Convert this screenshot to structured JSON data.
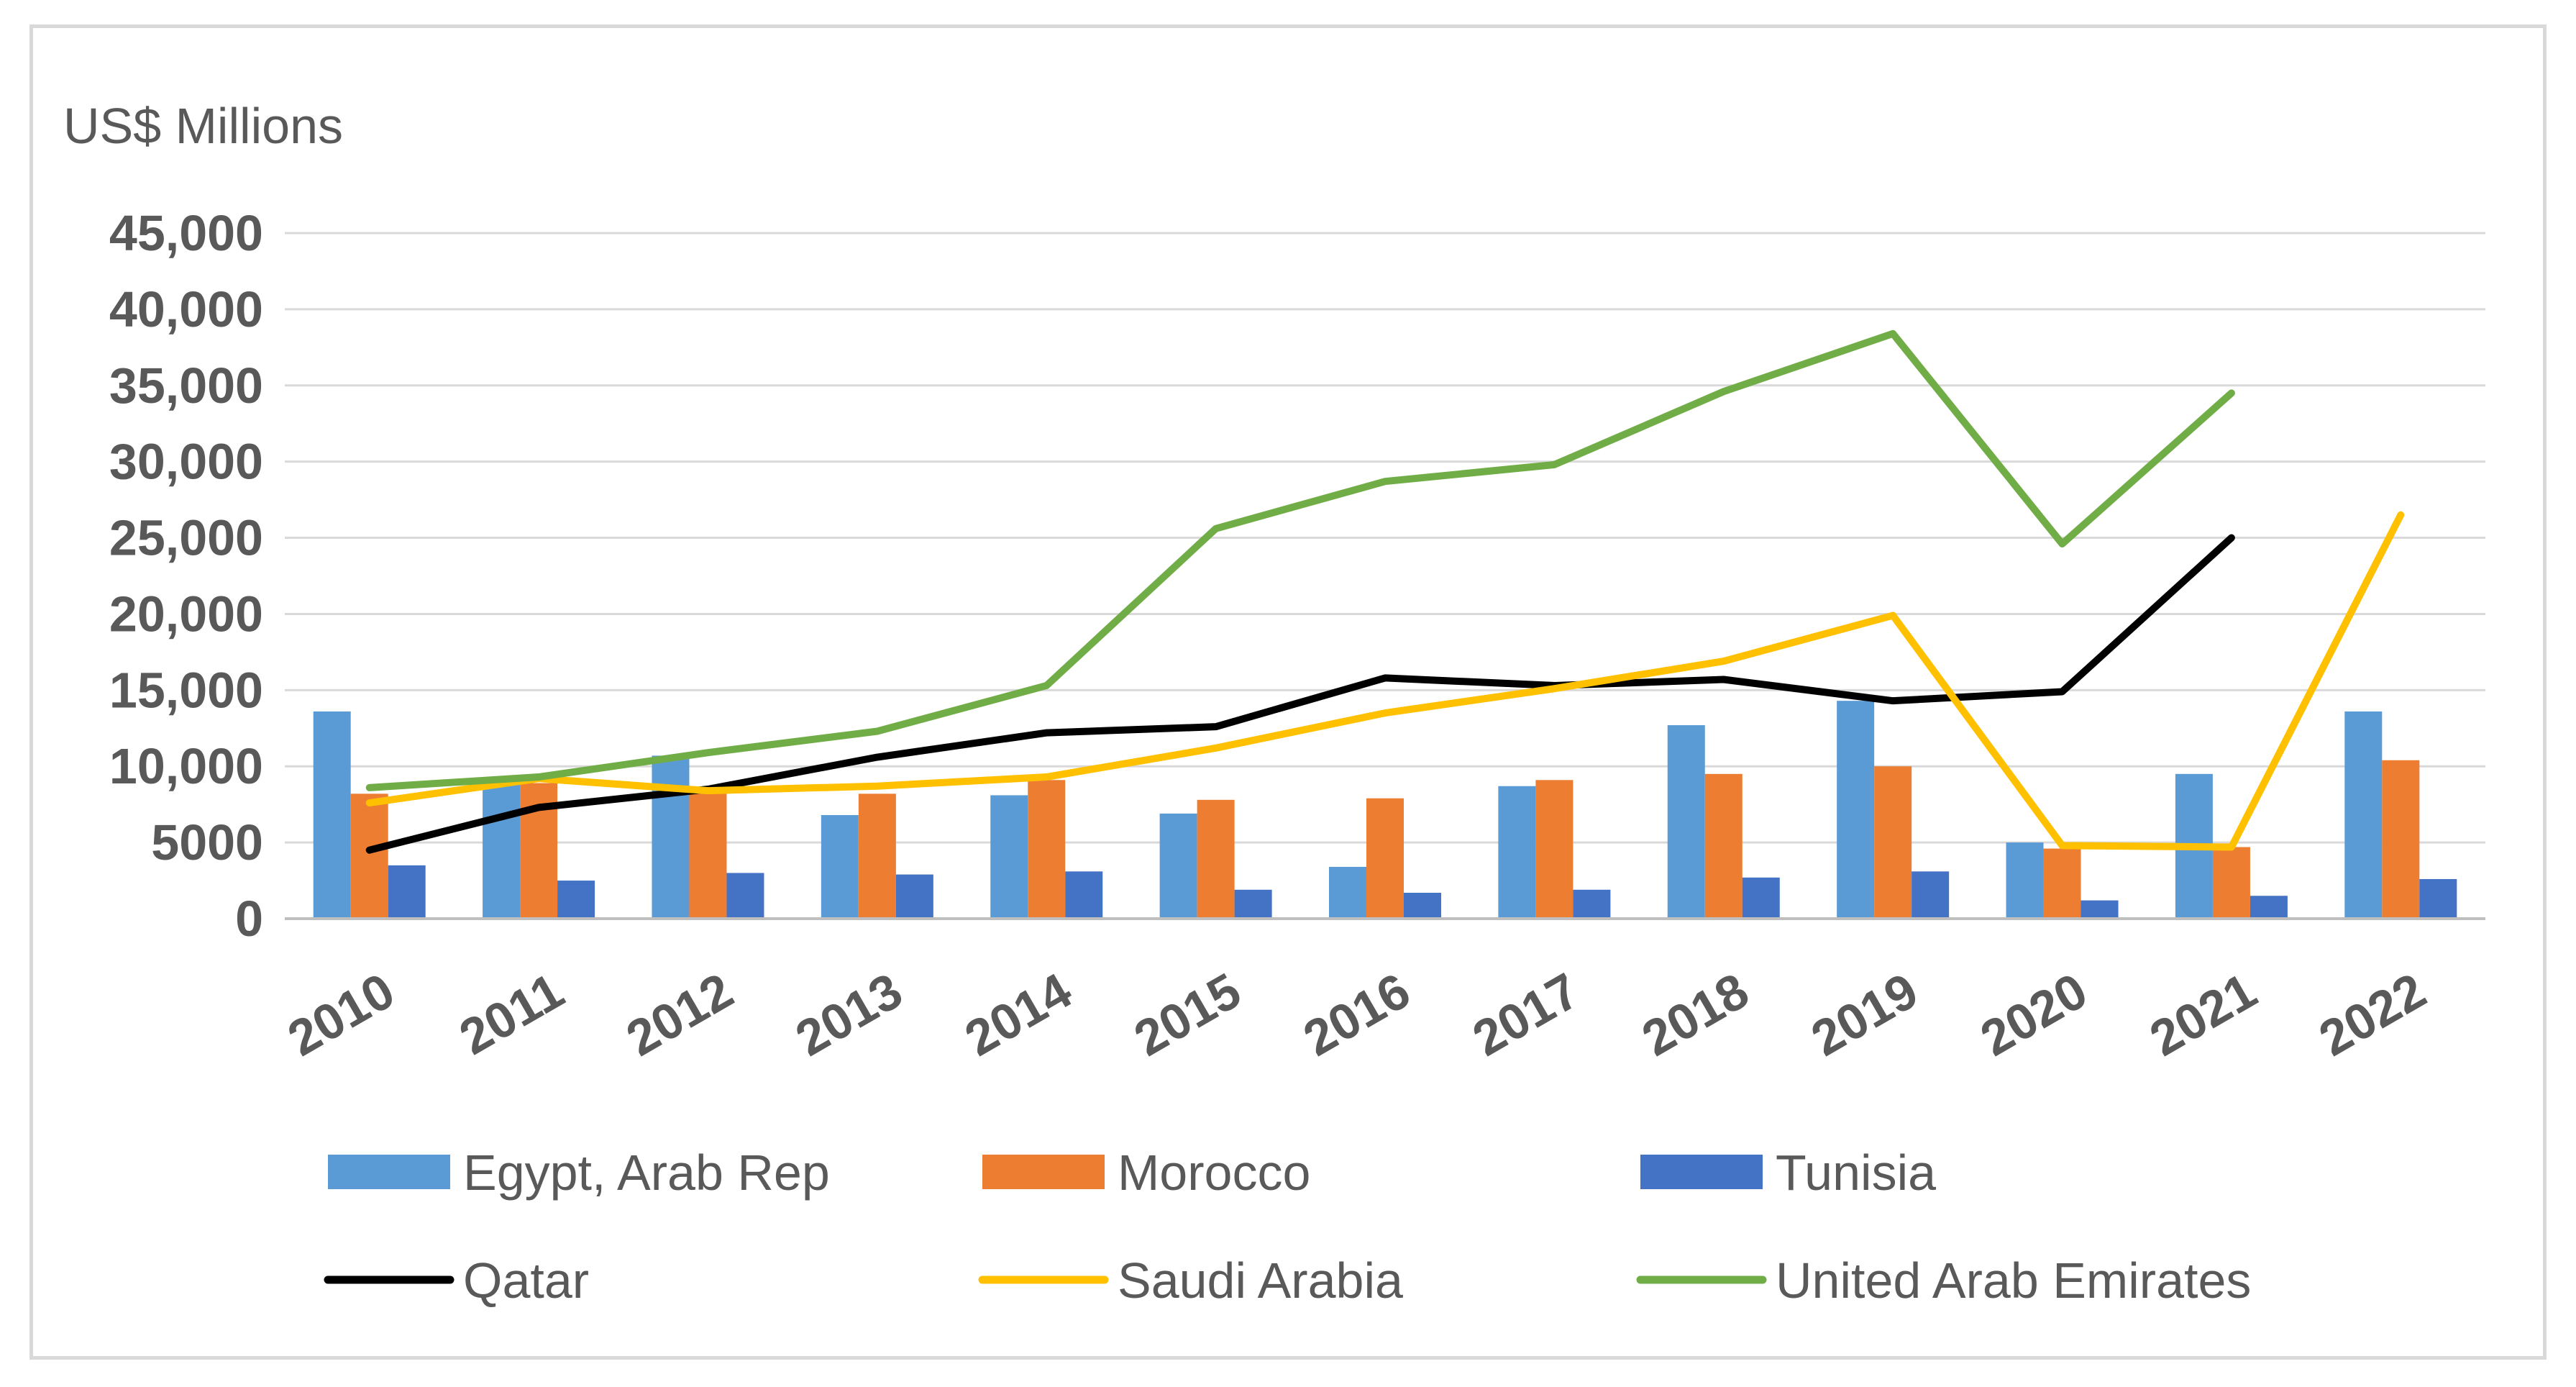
{
  "chart_data": {
    "type": "bar",
    "unit_label": "US$ Millions",
    "title": "",
    "xlabel": "",
    "ylabel": "US$ Millions",
    "ylim": [
      0,
      45000
    ],
    "y_ticks": [
      0,
      5000,
      10000,
      15000,
      20000,
      25000,
      30000,
      35000,
      40000,
      45000
    ],
    "y_tick_labels": [
      "0",
      "5000",
      "10,000",
      "15,000",
      "20,000",
      "25,000",
      "30,000",
      "35,000",
      "40,000",
      "45,000"
    ],
    "grid": true,
    "categories": [
      "2010",
      "2011",
      "2012",
      "2013",
      "2014",
      "2015",
      "2016",
      "2017",
      "2018",
      "2019",
      "2020",
      "2021",
      "2022"
    ],
    "bar_series": [
      {
        "name": "Egypt, Arab Rep",
        "color": "#5b9bd5",
        "values": [
          13600,
          9000,
          10700,
          6800,
          8100,
          6900,
          3400,
          8700,
          12700,
          14300,
          5000,
          9500,
          13600
        ]
      },
      {
        "name": "Morocco",
        "color": "#ed7d31",
        "values": [
          8200,
          8900,
          8400,
          8200,
          9100,
          7800,
          7900,
          9100,
          9500,
          10000,
          4600,
          4700,
          10400
        ]
      },
      {
        "name": "Tunisia",
        "color": "#4472c4",
        "values": [
          3500,
          2500,
          3000,
          2900,
          3100,
          1900,
          1700,
          1900,
          2700,
          3100,
          1200,
          1500,
          2600
        ]
      }
    ],
    "line_series": [
      {
        "name": "Qatar",
        "color": "#000000",
        "values": [
          4500,
          7300,
          8500,
          10600,
          12200,
          12600,
          15800,
          15300,
          15700,
          14300,
          14900,
          25000,
          null
        ]
      },
      {
        "name": "Saudi Arabia",
        "color": "#ffc000",
        "values": [
          7600,
          9200,
          8400,
          8700,
          9300,
          11200,
          13500,
          15100,
          16900,
          19900,
          4800,
          4700,
          26500
        ]
      },
      {
        "name": "United Arab Emirates",
        "color": "#70ad47",
        "values": [
          8600,
          9300,
          10900,
          12300,
          15300,
          25600,
          28700,
          29800,
          34600,
          38400,
          24600,
          34500,
          null
        ]
      }
    ],
    "legend": {
      "position": "bottom",
      "entries": [
        {
          "name": "Egypt, Arab Rep",
          "kind": "bar",
          "color": "#5b9bd5"
        },
        {
          "name": "Morocco",
          "kind": "bar",
          "color": "#ed7d31"
        },
        {
          "name": "Tunisia",
          "kind": "bar",
          "color": "#4472c4"
        },
        {
          "name": "Qatar",
          "kind": "line",
          "color": "#000000"
        },
        {
          "name": "Saudi Arabia",
          "kind": "line",
          "color": "#ffc000"
        },
        {
          "name": "United Arab Emirates",
          "kind": "line",
          "color": "#70ad47"
        }
      ]
    },
    "colors": {
      "gridline": "#d9d9d9",
      "axis": "#bfbfbf",
      "text": "#595959"
    }
  }
}
